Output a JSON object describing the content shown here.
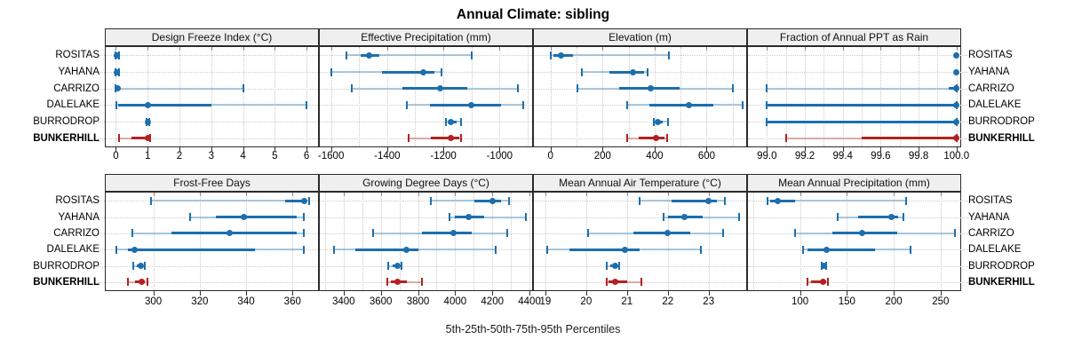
{
  "chart_data": {
    "type": "scatter",
    "subtype": "trellis dot-interval plot (5-25-50-75-95 percentile whiskers), 2 rows x 4 panels",
    "title": "Annual Climate: sibling",
    "xlabel": "5th-25th-50th-75th-95th Percentiles",
    "legend_position": "none",
    "grid": "dotted",
    "percentile_levels": [
      5,
      25,
      50,
      75,
      95
    ],
    "sites": [
      "ROSITAS",
      "YAHANA",
      "CARRIZO",
      "DALELAKE",
      "BURRODROP",
      "BUNKERHILL"
    ],
    "highlight_site": "BUNKERHILL",
    "colors": {
      "series": "#1c6fad",
      "series_light": "rgba(28,111,173,0.35)",
      "highlight": "#b22222",
      "highlight_light": "rgba(178,34,34,0.35)",
      "strip_bg": "#efefef",
      "panel_border": "#2b2b2b",
      "gridline": "#c9c9c9"
    },
    "panels": [
      {
        "label": "Design Freeze Index (°C)",
        "xlim": [
          -0.32,
          6.36
        ],
        "ticks": [
          0,
          1,
          2,
          3,
          4,
          5,
          6
        ],
        "tick_labels": [
          "0",
          "1",
          "2",
          "3",
          "4",
          "5",
          "6"
        ],
        "minor_grid": [],
        "values": [
          [
            0,
            0,
            0.02,
            0.05,
            0.1
          ],
          [
            0,
            0,
            0.02,
            0.05,
            0.09
          ],
          [
            0,
            0.01,
            0.05,
            0.12,
            4.0
          ],
          [
            0.02,
            0.08,
            1.0,
            3.0,
            6.0
          ],
          [
            0.96,
            0.98,
            1.0,
            1.02,
            1.04
          ],
          [
            0.1,
            0.5,
            1.0,
            1.03,
            1.07
          ]
        ]
      },
      {
        "label": "Effective Precipitation (mm)",
        "xlim": [
          -1640,
          -884
        ],
        "ticks": [
          -1600,
          -1400,
          -1200,
          -1000
        ],
        "tick_labels": [
          "-1600",
          "-1400",
          "-1200",
          "-1000"
        ],
        "minor_grid": [
          -1500,
          -1300,
          -1100,
          -900
        ],
        "values": [
          [
            -1545,
            -1495,
            -1465,
            -1428,
            -1100
          ],
          [
            -1600,
            -1420,
            -1270,
            -1232,
            -1208
          ],
          [
            -1525,
            -1345,
            -1210,
            -1115,
            -935
          ],
          [
            -1330,
            -1248,
            -1100,
            -995,
            -915
          ],
          [
            -1190,
            -1182,
            -1172,
            -1152,
            -1136
          ],
          [
            -1325,
            -1245,
            -1175,
            -1142,
            -1136
          ]
        ]
      },
      {
        "label": "Elevation (m)",
        "xlim": [
          -64,
          752
        ],
        "ticks": [
          0,
          200,
          400,
          600
        ],
        "tick_labels": [
          "0",
          "200",
          "400",
          "600"
        ],
        "minor_grid": [
          100,
          300,
          500,
          700
        ],
        "values": [
          [
            0,
            12,
            40,
            85,
            455
          ],
          [
            120,
            225,
            318,
            358,
            372
          ],
          [
            105,
            265,
            385,
            495,
            700
          ],
          [
            295,
            380,
            532,
            625,
            740
          ],
          [
            398,
            406,
            412,
            432,
            452
          ],
          [
            295,
            340,
            405,
            437,
            448
          ]
        ]
      },
      {
        "label": "Fraction of Annual PPT as Rain",
        "xlim": [
          98.9,
          100.02
        ],
        "ticks": [
          99.0,
          99.2,
          99.4,
          99.6,
          99.8,
          100.0
        ],
        "tick_labels": [
          "99.0",
          "99.2",
          "99.4",
          "99.6",
          "99.8",
          "100.0"
        ],
        "minor_grid": [
          99.1,
          99.3,
          99.5,
          99.7,
          99.9
        ],
        "values": [
          [
            100,
            100,
            100,
            100,
            100
          ],
          [
            100,
            100,
            100,
            100,
            100
          ],
          [
            99.0,
            99.96,
            100,
            100,
            100
          ],
          [
            99.0,
            99.0,
            100,
            100,
            100
          ],
          [
            99.0,
            99.0,
            100,
            100,
            100
          ],
          [
            99.1,
            99.5,
            100,
            100,
            100
          ]
        ]
      },
      {
        "label": "Frost-Free Days",
        "xlim": [
          279.5,
          371
        ],
        "ticks": [
          300,
          320,
          340,
          360
        ],
        "tick_labels": [
          "300",
          "320",
          "340",
          "360"
        ],
        "minor_grid": [],
        "values": [
          [
            299,
            357,
            365,
            366,
            367
          ],
          [
            316,
            327,
            339,
            362,
            365
          ],
          [
            291,
            308,
            333,
            362,
            365
          ],
          [
            284,
            289,
            292,
            344,
            365
          ],
          [
            291.5,
            293,
            294.5,
            295.5,
            296.5
          ],
          [
            289,
            292,
            295,
            296.5,
            297.5
          ]
        ]
      },
      {
        "label": "Growing Degree Days (°C)",
        "xlim": [
          3272,
          4414
        ],
        "ticks": [
          3400,
          3600,
          3800,
          4000,
          4200,
          4400
        ],
        "tick_labels": [
          "3400",
          "3600",
          "3800",
          "4000",
          "4200",
          "4400"
        ],
        "minor_grid": [
          3300,
          3500,
          3700,
          3900,
          4100,
          4300
        ],
        "values": [
          [
            3870,
            4105,
            4200,
            4245,
            4290
          ],
          [
            3970,
            4000,
            4070,
            4155,
            4380
          ],
          [
            3560,
            3820,
            3990,
            4090,
            4280
          ],
          [
            3350,
            3465,
            3740,
            3800,
            4220
          ],
          [
            3640,
            3665,
            3690,
            3702,
            3712
          ],
          [
            3635,
            3655,
            3690,
            3742,
            3820
          ]
        ]
      },
      {
        "label": "Mean Annual Air Temperature (°C)",
        "xlim": [
          18.72,
          23.92
        ],
        "ticks": [
          19,
          20,
          21,
          22,
          23
        ],
        "tick_labels": [
          "19",
          "20",
          "21",
          "22",
          "23"
        ],
        "minor_grid": [],
        "values": [
          [
            21.3,
            22.1,
            23.0,
            23.2,
            23.4
          ],
          [
            21.9,
            22.0,
            22.4,
            22.85,
            23.75
          ],
          [
            20.05,
            21.15,
            22.0,
            22.55,
            23.35
          ],
          [
            19.05,
            19.6,
            20.95,
            21.3,
            22.8
          ],
          [
            20.5,
            20.6,
            20.7,
            20.75,
            20.8
          ],
          [
            20.5,
            20.55,
            20.7,
            21.0,
            21.35
          ]
        ]
      },
      {
        "label": "Mean Annual Precipitation (mm)",
        "xlim": [
          44.5,
          271
        ],
        "ticks": [
          100,
          150,
          200,
          250
        ],
        "tick_labels": [
          "100",
          "150",
          "200",
          "250"
        ],
        "minor_grid": [
          50
        ],
        "values": [
          [
            65,
            68,
            76,
            95,
            213
          ],
          [
            140,
            162,
            198,
            205,
            210
          ],
          [
            95,
            135,
            166,
            204,
            265
          ],
          [
            103,
            108,
            128,
            180,
            218
          ],
          [
            123,
            125,
            126,
            127,
            128
          ],
          [
            108,
            112,
            125,
            128,
            130
          ]
        ]
      }
    ]
  }
}
